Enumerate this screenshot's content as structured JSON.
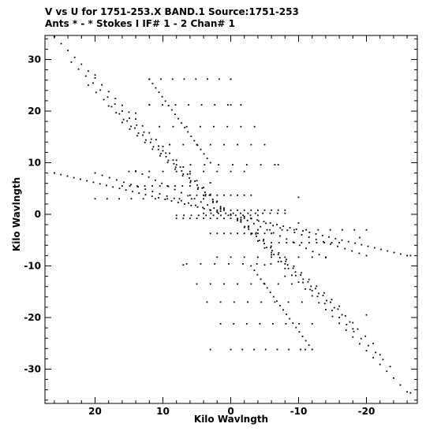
{
  "header": {
    "line1": "V vs U for 1751-253.X BAND.1   Source:1751-253",
    "line2": "Ants * - *    Stokes I  IF# 1 - 2  Chan# 1"
  },
  "chart_data": {
    "type": "scatter",
    "title": "V vs U for 1751-253.X BAND.1   Source:1751-253",
    "subtitle": "Ants * - *    Stokes I  IF# 1 - 2  Chan# 1",
    "xlabel": "Kilo Wavlngth",
    "ylabel": "Kilo Wavlngth",
    "xlim": [
      27,
      -27
    ],
    "ylim": [
      -36.5,
      35.8
    ],
    "x_reversed": true,
    "grid": false,
    "x_ticks": [
      20,
      10,
      0,
      -10,
      -20
    ],
    "x_tick_labels": [
      "20",
      "10",
      "0",
      "-10",
      "-20"
    ],
    "y_ticks": [
      30,
      20,
      10,
      0,
      -10,
      -20,
      -30
    ],
    "y_tick_labels": [
      "30",
      "20",
      "10",
      "0",
      "-10",
      "-20",
      "-30"
    ],
    "uv_tracks_sampled": [
      {
        "u": 26.0,
        "v": 34.4
      },
      {
        "u": 20.0,
        "v": 27.0
      },
      {
        "u": 14.0,
        "v": 19.6
      },
      {
        "u": 9.0,
        "v": 13.5
      },
      {
        "u": 3.0,
        "v": 6.1
      },
      {
        "u": 0.0,
        "v": 0.0
      },
      {
        "u": -6.0,
        "v": -7.4
      },
      {
        "u": -12.0,
        "v": -14.8
      },
      {
        "u": -18.0,
        "v": -22.2
      },
      {
        "u": -22.0,
        "v": -27.2
      },
      {
        "u": -26.5,
        "v": -34.6
      },
      {
        "u": 12.0,
        "v": 26.2
      },
      {
        "u": 0.0,
        "v": 26.2
      },
      {
        "u": 12.0,
        "v": 21.2
      },
      {
        "u": 0.0,
        "v": 21.2
      },
      {
        "u": 10.0,
        "v": 12.3
      },
      {
        "u": -7.0,
        "v": 9.6
      },
      {
        "u": 26.0,
        "v": 8.0
      },
      {
        "u": 15.0,
        "v": 8.3
      },
      {
        "u": 4.0,
        "v": 3.7
      },
      {
        "u": -10.0,
        "v": 3.3
      },
      {
        "u": 0.0,
        "v": -0.2
      },
      {
        "u": -10.0,
        "v": -1.7
      },
      {
        "u": -19.0,
        "v": -4.5
      },
      {
        "u": -26.5,
        "v": -8.0
      },
      {
        "u": 7.0,
        "v": -9.8
      },
      {
        "u": -5.0,
        "v": -9.8
      },
      {
        "u": 3.0,
        "v": -26.2
      },
      {
        "u": -11.0,
        "v": -26.2
      },
      {
        "u": -8.0,
        "v": -12.0
      },
      {
        "u": -20.0,
        "v": -19.5
      }
    ]
  }
}
